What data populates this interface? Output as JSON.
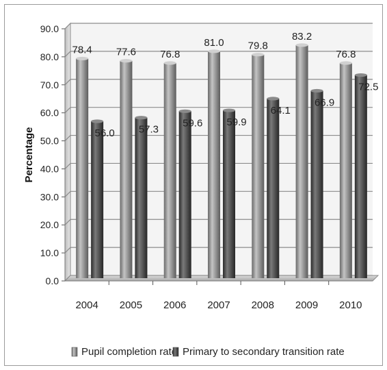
{
  "chart_data": {
    "type": "bar",
    "title": "",
    "xlabel": "",
    "ylabel": "Percentage",
    "categories": [
      "2004",
      "2005",
      "2006",
      "2007",
      "2008",
      "2009",
      "2010"
    ],
    "series": [
      {
        "name": "Pupil completion rate",
        "values": [
          78.4,
          77.6,
          76.8,
          81.0,
          79.8,
          83.2,
          76.8
        ],
        "color": "#8c8c8c"
      },
      {
        "name": "Primary to secondary transition rate",
        "values": [
          56.0,
          57.3,
          59.6,
          59.9,
          64.1,
          66.9,
          72.5
        ],
        "color": "#4a4a4a"
      }
    ],
    "ylim": [
      0,
      90
    ],
    "yticks": [
      "0.0",
      "10.0",
      "20.0",
      "30.0",
      "40.0",
      "50.0",
      "60.0",
      "70.0",
      "80.0",
      "90.0"
    ],
    "data_labels": [
      [
        "78.4",
        "77.6",
        "76.8",
        "81.0",
        "79.8",
        "83.2",
        "76.8"
      ],
      [
        "56.0",
        "57.3",
        "59.6",
        "59.9",
        "64.1",
        "66.9",
        "72.5"
      ]
    ],
    "grid": true,
    "legend_position": "bottom",
    "style": "3d-cylinder"
  }
}
